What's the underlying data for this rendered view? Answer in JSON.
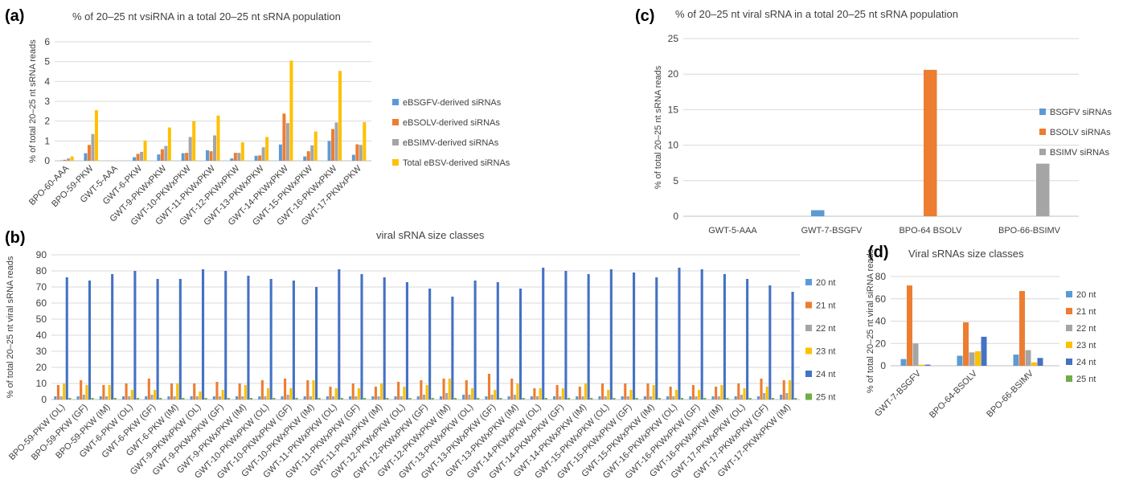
{
  "colors": {
    "blue": "#5b9bd5",
    "orange": "#ed7d31",
    "gray": "#a5a5a5",
    "yellow": "#ffc000",
    "darkblue": "#4472c4",
    "green": "#70ad47"
  },
  "panels": {
    "a": {
      "label": "(a)"
    },
    "b": {
      "label": "(b)"
    },
    "c": {
      "label": "(c)"
    },
    "d": {
      "label": "(d)"
    }
  },
  "chart_data": [
    {
      "id": "a",
      "type": "bar",
      "title": "% of 20–25 nt vsiRNA in a total 20–25 nt sRNA population",
      "xlabel": "",
      "ylabel": "% of total 20–25 nt sRNA reads",
      "ylim": [
        0,
        6
      ],
      "yticks": [
        0,
        1,
        2,
        3,
        4,
        5,
        6
      ],
      "grid": true,
      "legend_position": "right",
      "categories": [
        "BPO-60-AAA",
        "BPO-59-PKW",
        "GWT-5-AAA",
        "GWT-6-PKW",
        "GWT-9-PKWxPKW",
        "GWT-10-PKWxPKW",
        "GWT-11-PKWxPKW",
        "GWT-12-PKWxPKW",
        "GWT-13-PKWxPKW",
        "GWT-14-PKWxPKW",
        "GWT-15-PKWxPKW",
        "GWT-16-PKWxPKW",
        "GWT-17-PKWxPKW"
      ],
      "series": [
        {
          "name": "eBSGFV-derived siRNAs",
          "color": "#5b9bd5",
          "values": [
            0.02,
            0.38,
            0.0,
            0.18,
            0.32,
            0.38,
            0.53,
            0.12,
            0.25,
            0.82,
            0.22,
            1.0,
            0.3
          ]
        },
        {
          "name": "eBSOLV-derived siRNAs",
          "color": "#ed7d31",
          "values": [
            0.05,
            0.8,
            0.0,
            0.35,
            0.58,
            0.4,
            0.48,
            0.4,
            0.27,
            2.38,
            0.48,
            1.6,
            0.83
          ]
        },
        {
          "name": "eBSIMV-derived siRNAs",
          "color": "#a5a5a5",
          "values": [
            0.12,
            1.35,
            0.0,
            0.45,
            0.75,
            1.2,
            1.28,
            0.4,
            0.68,
            1.9,
            0.78,
            1.93,
            0.8
          ]
        },
        {
          "name": "Total eBSV-derived siRNAs",
          "color": "#ffc000",
          "values": [
            0.22,
            2.55,
            0.0,
            1.02,
            1.68,
            2.0,
            2.28,
            0.93,
            1.2,
            5.05,
            1.48,
            4.53,
            1.95
          ]
        }
      ]
    },
    {
      "id": "b",
      "type": "bar",
      "title": "viral sRNA size classes",
      "xlabel": "",
      "ylabel": "% of total 20–25 nt viral sRNA reads",
      "ylim": [
        0,
        90
      ],
      "yticks": [
        0,
        10,
        20,
        30,
        40,
        50,
        60,
        70,
        80,
        90
      ],
      "grid": true,
      "legend_position": "right",
      "categories": [
        "BPO-59-PKW (OL)",
        "BPO-59-PKW (GF)",
        "BPO-59-PKW (IM)",
        "GWT-6-PKW (OL)",
        "GWT-6-PKW (GF)",
        "GWT-6-PKW (IM)",
        "GWT-9-PKWxPKW (OL)",
        "GWT-9-PKWxPKW (GF)",
        "GWT-9-PKWxPKW (IM)",
        "GWT-10-PKWxPKW (OL)",
        "GWT-10-PKWxPKW (GF)",
        "GWT-10-PKWxPKW (IM)",
        "GWT-11-PKWxPKW (OL)",
        "GWT-11-PKWxPKW (GF)",
        "GWT-11-PKWxPKW (IM)",
        "GWT-12-PKWxPKW (OL)",
        "GWT-12-PKWxPKW (GF)",
        "GWT-12-PKWxPKW (IM)",
        "GWT-13-PKWxPKW (OL)",
        "GWT-13-PKWxPKW (GF)",
        "GWT-13-PKWxPKW (IM)",
        "GWT-14-PKWxPKW (OL)",
        "GWT-14-PKWxPKW (GF)",
        "GWT-14-PKWxPKW (IM)",
        "GWT-15-PKWxPKW (OL)",
        "GWT-15-PKWxPKW (GF)",
        "GWT-15-PKWxPKW (IM)",
        "GWT-16-PKWxPKW (OL)",
        "GWT-16-PKWxPKW (GF)",
        "GWT-16-PKWxPKW (IM)",
        "GWT-17-PKWxPKW (OL)",
        "GWT-17-PKWxPKW (GF)",
        "GWT-17-PKWxPKW (IM)"
      ],
      "series": [
        {
          "name": "20 nt",
          "color": "#5b9bd5",
          "values": [
            2,
            2,
            2,
            2,
            2,
            2,
            2,
            2,
            2,
            2,
            2,
            2,
            2,
            2,
            2,
            2,
            2,
            2,
            3,
            2,
            2,
            2,
            2,
            2,
            2,
            2,
            2,
            2,
            2,
            2,
            2,
            2,
            3
          ]
        },
        {
          "name": "21 nt",
          "color": "#ed7d31",
          "values": [
            9,
            12,
            9,
            10,
            13,
            10,
            10,
            11,
            10,
            12,
            13,
            12,
            8,
            10,
            8,
            11,
            12,
            13,
            12,
            16,
            13,
            7,
            9,
            8,
            10,
            10,
            10,
            8,
            9,
            8,
            10,
            13,
            12
          ]
        },
        {
          "name": "22 nt",
          "color": "#a5a5a5",
          "values": [
            2,
            3,
            2,
            2,
            3,
            2,
            2,
            2,
            2,
            2,
            3,
            2,
            2,
            2,
            2,
            2,
            3,
            4,
            3,
            3,
            3,
            2,
            2,
            2,
            2,
            2,
            2,
            2,
            2,
            2,
            3,
            4,
            4
          ]
        },
        {
          "name": "23 nt",
          "color": "#ffc000",
          "values": [
            10,
            9,
            9,
            6,
            6,
            10,
            5,
            6,
            9,
            7,
            7,
            12,
            7,
            7,
            10,
            8,
            9,
            13,
            7,
            6,
            10,
            7,
            7,
            10,
            6,
            6,
            9,
            6,
            6,
            9,
            7,
            8,
            12
          ]
        },
        {
          "name": "24 nt",
          "color": "#4472c4",
          "values": [
            76,
            74,
            78,
            80,
            75,
            75,
            81,
            80,
            77,
            75,
            74,
            70,
            81,
            78,
            76,
            73,
            69,
            64,
            74,
            73,
            69,
            82,
            80,
            78,
            81,
            79,
            76,
            82,
            81,
            78,
            75,
            71,
            67
          ]
        },
        {
          "name": "25 nt",
          "color": "#70ad47",
          "values": [
            1,
            1,
            1,
            1,
            1,
            1,
            1,
            1,
            1,
            1,
            1,
            1,
            1,
            1,
            1,
            1,
            1,
            1,
            1,
            1,
            1,
            1,
            1,
            1,
            1,
            1,
            1,
            1,
            1,
            1,
            1,
            1,
            1
          ]
        }
      ]
    },
    {
      "id": "c",
      "type": "bar",
      "title": "% of 20–25 nt viral sRNA in a total 20–25 nt sRNA population",
      "xlabel": "",
      "ylabel": "% of total 20–25 nt sRNA reads",
      "ylim": [
        0,
        25
      ],
      "yticks": [
        0,
        5,
        10,
        15,
        20,
        25
      ],
      "grid": true,
      "legend_position": "right",
      "categories": [
        "GWT-5-AAA",
        "GWT-7-BSGFV",
        "BPO-64 BSOLV",
        "BPO-66-BSIMV"
      ],
      "series": [
        {
          "name": "BSGFV siRNAs",
          "color": "#5b9bd5",
          "values": [
            0,
            0.85,
            0,
            0
          ]
        },
        {
          "name": "BSOLV siRNAs",
          "color": "#ed7d31",
          "values": [
            0,
            0,
            20.6,
            0
          ]
        },
        {
          "name": "BSIMV siRNAs",
          "color": "#a5a5a5",
          "values": [
            0,
            0,
            0,
            7.4
          ]
        }
      ]
    },
    {
      "id": "d",
      "type": "bar",
      "title": "Viral sRNAs size classes",
      "xlabel": "",
      "ylabel": "% of total 20–25 nt viral siRNA reads",
      "ylim": [
        0,
        80
      ],
      "yticks": [
        0,
        20,
        40,
        60,
        80
      ],
      "grid": true,
      "legend_position": "right",
      "categories": [
        "GWT-7-BSGFV",
        "BPO-64-BSOLV",
        "BPO-66-BSIMV"
      ],
      "series": [
        {
          "name": "20 nt",
          "color": "#5b9bd5",
          "values": [
            6,
            9,
            10
          ]
        },
        {
          "name": "21 nt",
          "color": "#ed7d31",
          "values": [
            72,
            39,
            67
          ]
        },
        {
          "name": "22 nt",
          "color": "#a5a5a5",
          "values": [
            20,
            12,
            14
          ]
        },
        {
          "name": "23 nt",
          "color": "#ffc000",
          "values": [
            1,
            13,
            3
          ]
        },
        {
          "name": "24 nt",
          "color": "#4472c4",
          "values": [
            1,
            26,
            7
          ]
        },
        {
          "name": "25 nt",
          "color": "#70ad47",
          "values": [
            0,
            0,
            0
          ]
        }
      ]
    }
  ]
}
